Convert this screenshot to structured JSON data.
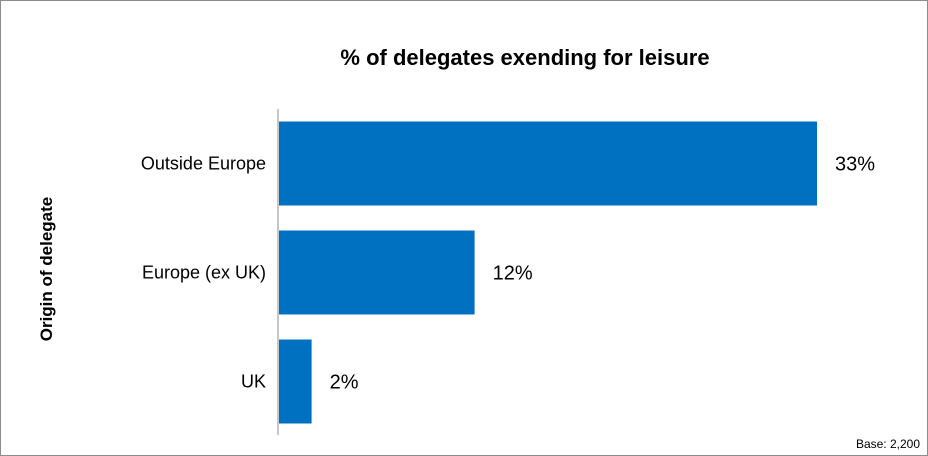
{
  "chart_data": {
    "type": "bar",
    "orientation": "horizontal",
    "title": "% of delegates exending for leisure",
    "xlabel": "",
    "ylabel": "Origin of delegate",
    "categories": [
      "Outside Europe",
      "Europe (ex UK)",
      "UK"
    ],
    "values": [
      33,
      12,
      2
    ],
    "value_labels": [
      "33%",
      "12%",
      "2%"
    ],
    "xlim": [
      0,
      33
    ],
    "grid": false,
    "legend": "none",
    "bar_color": "#0070C0",
    "footnote": "Base: 2,200"
  }
}
